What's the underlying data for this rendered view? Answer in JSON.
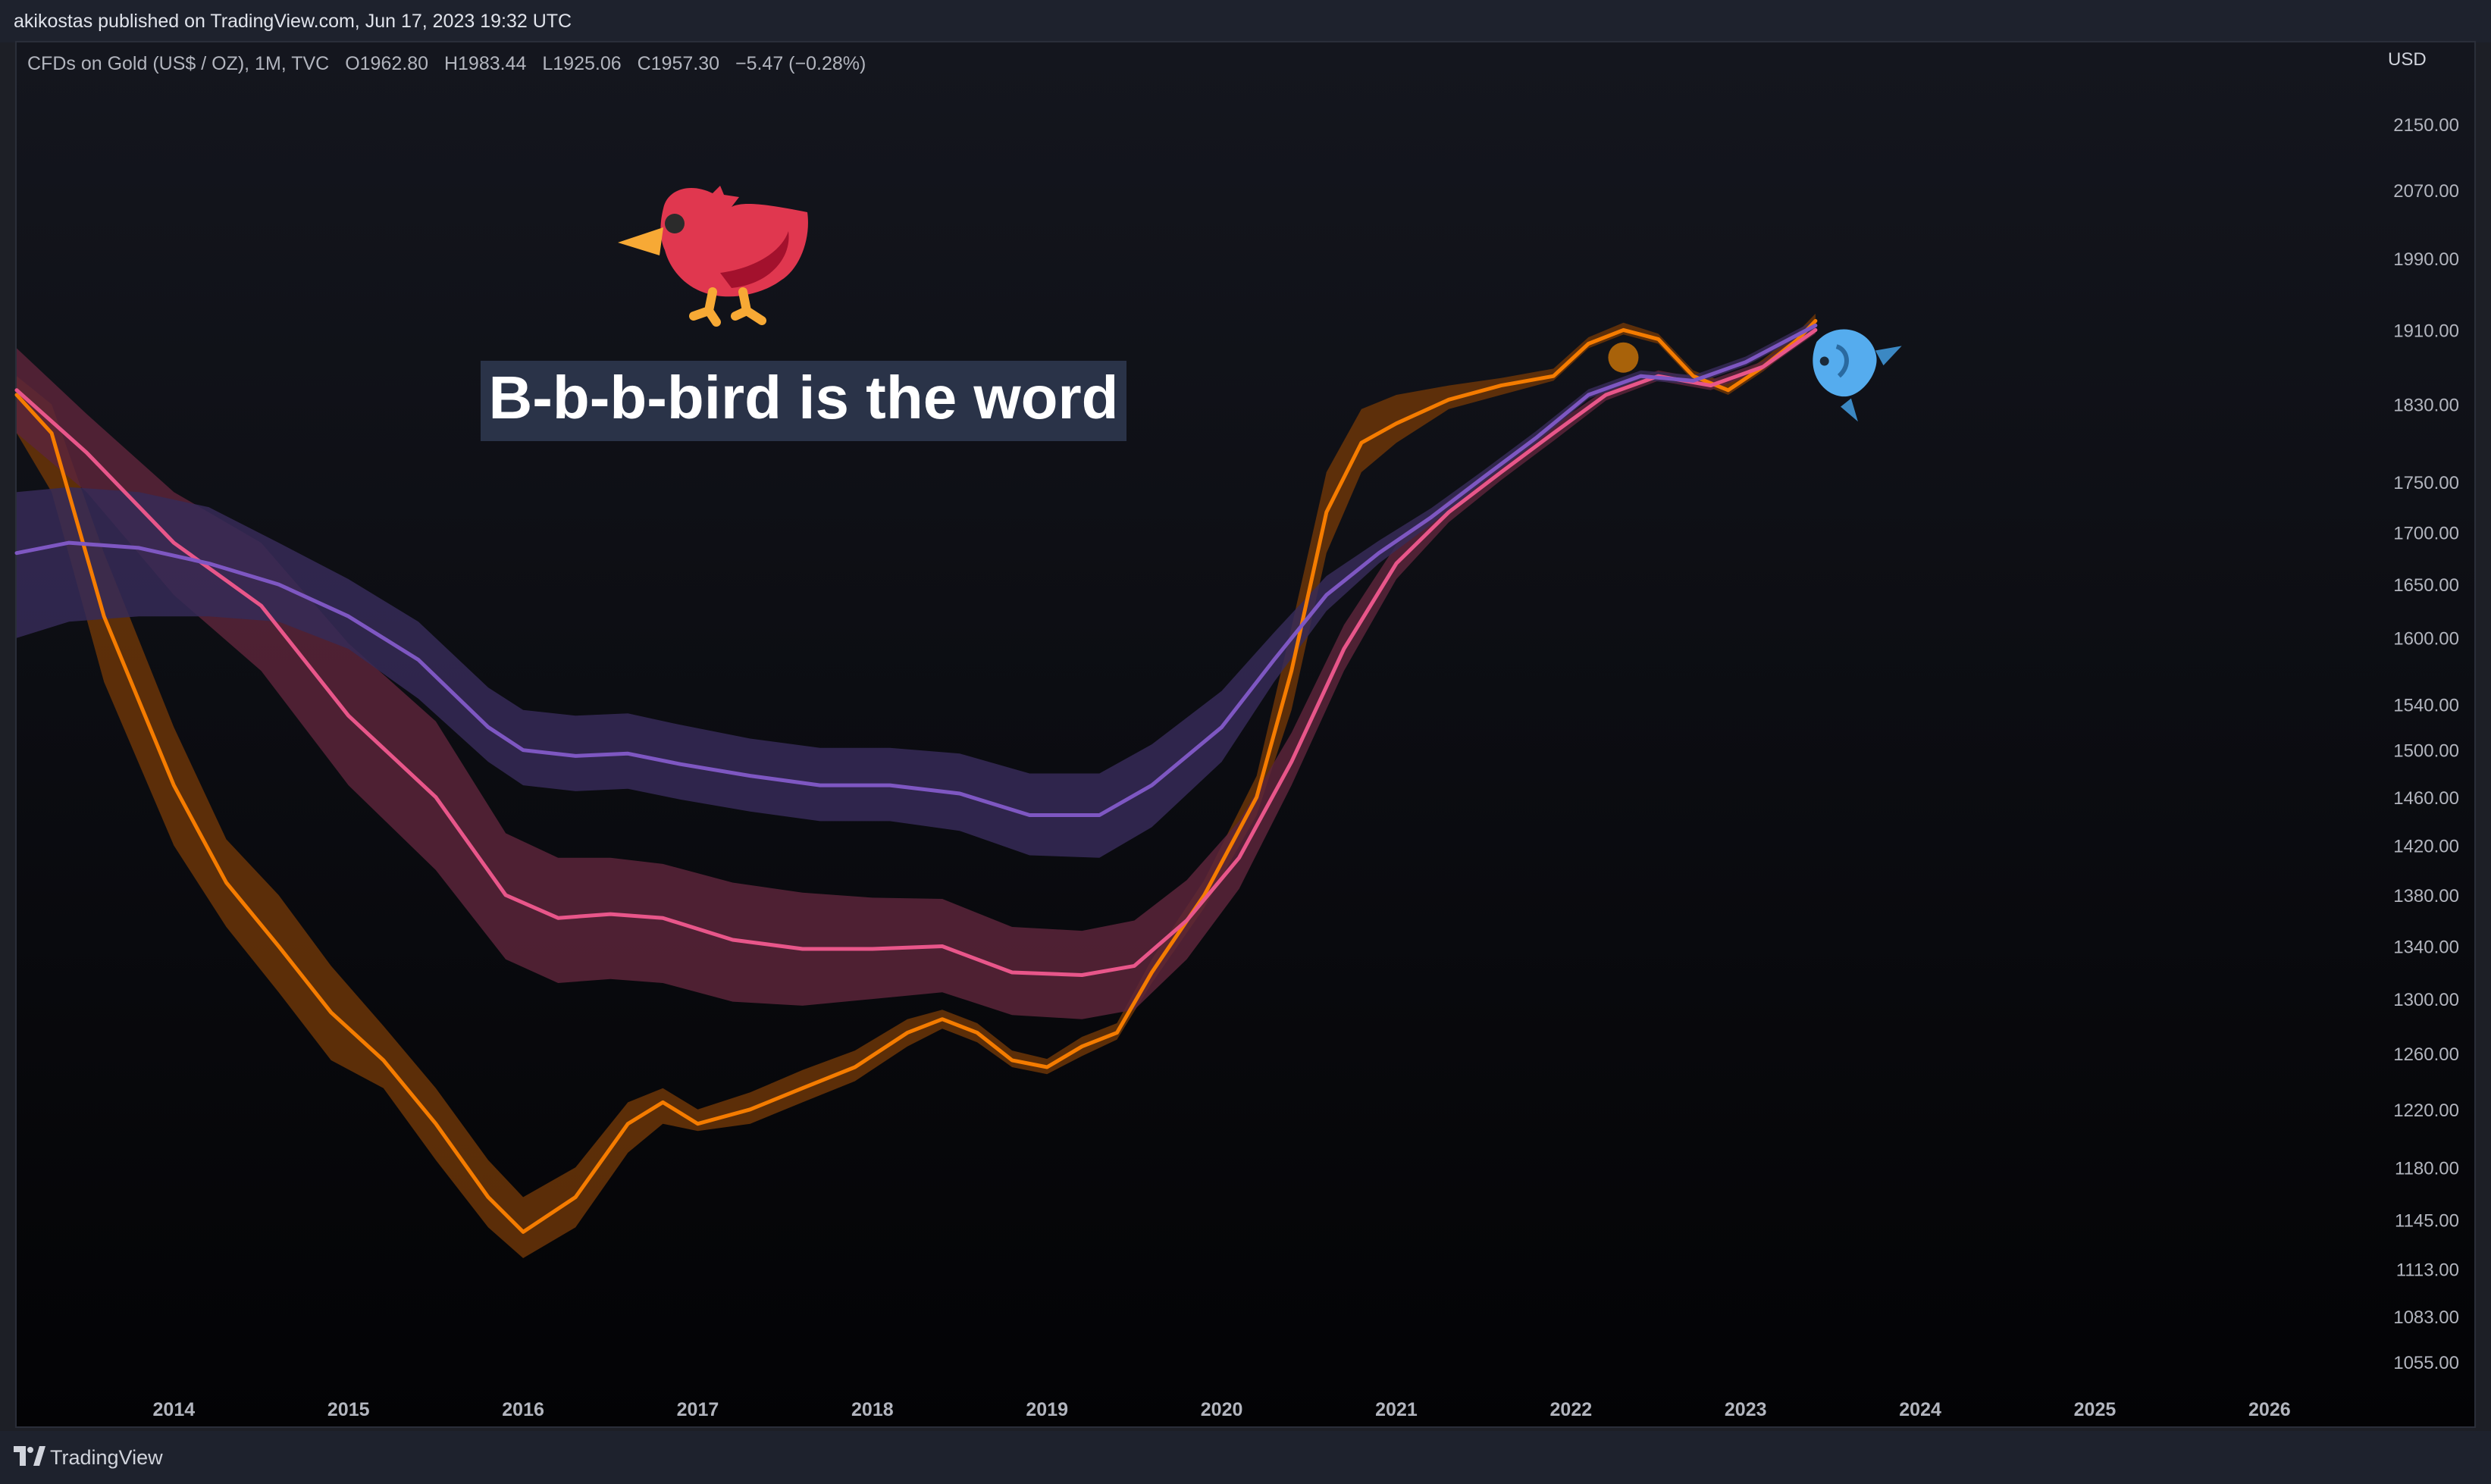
{
  "publish_line": "akikostas published on TradingView.com, Jun 17, 2023 19:32 UTC",
  "footer": {
    "brand": "TradingView"
  },
  "legend": {
    "symbol": "CFDs on Gold (US$ / OZ), 1M, TVC",
    "open": "O1962.80",
    "high": "H1983.44",
    "low": "L1925.06",
    "close": "C1957.30",
    "change": "−5.47 (−0.28%)"
  },
  "annotation": {
    "text": "B-b-b-bird is the word",
    "icons": [
      "bird-icon",
      "fish-icon"
    ]
  },
  "colors": {
    "background_top": "#14161e",
    "background_bottom": "#030305",
    "orange": "#f57c00",
    "orange_band": "#6b3508",
    "pink": "#e8568a",
    "pink_band": "#5a2439",
    "purple": "#7e57c2",
    "purple_band": "#362a57",
    "text": "#b2b5be"
  },
  "chart_data": {
    "type": "line",
    "currency": "USD",
    "price_scale": "log",
    "ylim": [
      1040,
      2230
    ],
    "xlim": [
      2013.1,
      2026.4
    ],
    "x_ticks": [
      "2014",
      "2015",
      "2016",
      "2017",
      "2018",
      "2019",
      "2020",
      "2021",
      "2022",
      "2023",
      "2024",
      "2025",
      "2026"
    ],
    "y_ticks": [
      "2150.00",
      "2070.00",
      "1990.00",
      "1910.00",
      "1830.00",
      "1750.00",
      "1700.00",
      "1650.00",
      "1600.00",
      "1540.00",
      "1500.00",
      "1460.00",
      "1420.00",
      "1380.00",
      "1340.00",
      "1300.00",
      "1260.00",
      "1220.00",
      "1180.00",
      "1145.00",
      "1113.00",
      "1083.00",
      "1055.00"
    ],
    "grid": false,
    "series": [
      {
        "color": "orange",
        "x": [
          2013.1,
          2013.3,
          2013.6,
          2014.0,
          2014.3,
          2014.6,
          2014.9,
          2015.2,
          2015.5,
          2015.8,
          2016.0,
          2016.3,
          2016.6,
          2016.8,
          2017.0,
          2017.3,
          2017.6,
          2017.9,
          2018.2,
          2018.4,
          2018.6,
          2018.8,
          2019.0,
          2019.2,
          2019.4,
          2019.6,
          2019.9,
          2020.2,
          2020.4,
          2020.6,
          2020.8,
          2021.0,
          2021.3,
          2021.6,
          2021.9,
          2022.1,
          2022.3,
          2022.5,
          2022.7,
          2022.9,
          2023.1,
          2023.3,
          2023.4
        ],
        "values": [
          1840,
          1800,
          1620,
          1470,
          1390,
          1340,
          1290,
          1255,
          1210,
          1160,
          1137,
          1160,
          1210,
          1225,
          1210,
          1220,
          1235,
          1250,
          1275,
          1285,
          1275,
          1255,
          1250,
          1265,
          1275,
          1320,
          1380,
          1460,
          1570,
          1720,
          1790,
          1810,
          1835,
          1850,
          1860,
          1895,
          1910,
          1900,
          1860,
          1845,
          1870,
          1900,
          1920
        ],
        "band_low": [
          1800,
          1740,
          1560,
          1420,
          1355,
          1305,
          1255,
          1235,
          1185,
          1140,
          1120,
          1140,
          1190,
          1210,
          1205,
          1210,
          1225,
          1240,
          1265,
          1278,
          1268,
          1250,
          1245,
          1258,
          1270,
          1312,
          1370,
          1445,
          1535,
          1680,
          1760,
          1790,
          1825,
          1840,
          1855,
          1890,
          1905,
          1895,
          1855,
          1840,
          1865,
          1895,
          1915
        ],
        "band_high": [
          1860,
          1830,
          1680,
          1520,
          1425,
          1380,
          1325,
          1280,
          1235,
          1185,
          1160,
          1180,
          1225,
          1235,
          1220,
          1232,
          1248,
          1262,
          1285,
          1292,
          1282,
          1262,
          1256,
          1272,
          1282,
          1330,
          1392,
          1478,
          1610,
          1760,
          1825,
          1840,
          1850,
          1858,
          1868,
          1902,
          1918,
          1906,
          1866,
          1852,
          1878,
          1908,
          1928
        ]
      },
      {
        "color": "pink",
        "x": [
          2013.1,
          2013.5,
          2014.0,
          2014.5,
          2015.0,
          2015.5,
          2015.9,
          2016.2,
          2016.5,
          2016.8,
          2017.2,
          2017.6,
          2018.0,
          2018.4,
          2018.8,
          2019.2,
          2019.5,
          2019.8,
          2020.1,
          2020.4,
          2020.7,
          2021.0,
          2021.3,
          2021.6,
          2021.9,
          2022.2,
          2022.5,
          2022.8,
          2023.1,
          2023.4
        ],
        "values": [
          1845,
          1780,
          1690,
          1630,
          1530,
          1460,
          1380,
          1362,
          1365,
          1362,
          1345,
          1338,
          1338,
          1340,
          1320,
          1318,
          1325,
          1360,
          1410,
          1490,
          1590,
          1670,
          1720,
          1760,
          1800,
          1840,
          1860,
          1850,
          1870,
          1910
        ],
        "band_low": [
          1800,
          1740,
          1640,
          1570,
          1470,
          1400,
          1330,
          1312,
          1315,
          1312,
          1298,
          1295,
          1300,
          1305,
          1288,
          1285,
          1292,
          1330,
          1385,
          1470,
          1570,
          1655,
          1710,
          1752,
          1792,
          1834,
          1855,
          1845,
          1866,
          1906
        ],
        "band_high": [
          1890,
          1820,
          1740,
          1690,
          1595,
          1525,
          1430,
          1410,
          1410,
          1405,
          1390,
          1382,
          1378,
          1377,
          1355,
          1352,
          1360,
          1392,
          1440,
          1515,
          1612,
          1688,
          1732,
          1770,
          1808,
          1846,
          1866,
          1856,
          1876,
          1916
        ]
      },
      {
        "color": "purple",
        "x": [
          2013.1,
          2013.4,
          2013.8,
          2014.2,
          2014.6,
          2015.0,
          2015.4,
          2015.8,
          2016.0,
          2016.3,
          2016.6,
          2016.9,
          2017.3,
          2017.7,
          2018.1,
          2018.5,
          2018.9,
          2019.3,
          2019.6,
          2020.0,
          2020.3,
          2020.6,
          2020.9,
          2021.2,
          2021.5,
          2021.8,
          2022.1,
          2022.4,
          2022.7,
          2023.0,
          2023.4
        ],
        "values": [
          1680,
          1690,
          1685,
          1670,
          1650,
          1620,
          1580,
          1520,
          1500,
          1495,
          1497,
          1488,
          1478,
          1470,
          1470,
          1463,
          1445,
          1445,
          1470,
          1520,
          1580,
          1640,
          1680,
          1715,
          1755,
          1795,
          1840,
          1860,
          1855,
          1875,
          1915
        ],
        "band_low": [
          1600,
          1615,
          1620,
          1620,
          1615,
          1590,
          1545,
          1490,
          1470,
          1465,
          1467,
          1458,
          1448,
          1440,
          1440,
          1432,
          1412,
          1410,
          1435,
          1490,
          1560,
          1625,
          1670,
          1708,
          1750,
          1790,
          1836,
          1856,
          1851,
          1871,
          1911
        ],
        "band_high": [
          1740,
          1745,
          1740,
          1725,
          1690,
          1655,
          1615,
          1555,
          1535,
          1530,
          1532,
          1522,
          1510,
          1502,
          1502,
          1497,
          1480,
          1480,
          1505,
          1552,
          1605,
          1658,
          1692,
          1724,
          1762,
          1802,
          1846,
          1866,
          1861,
          1881,
          1921
        ]
      }
    ],
    "annotation_markers": [
      {
        "shape": "circle",
        "x": 2022.3,
        "value": 1880
      }
    ]
  }
}
